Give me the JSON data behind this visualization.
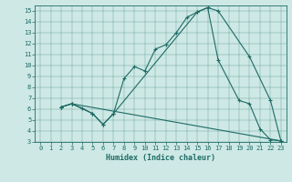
{
  "xlabel": "Humidex (Indice chaleur)",
  "xlim": [
    -0.5,
    23.5
  ],
  "ylim": [
    3,
    15.5
  ],
  "xticks": [
    0,
    1,
    2,
    3,
    4,
    5,
    6,
    7,
    8,
    9,
    10,
    11,
    12,
    13,
    14,
    15,
    16,
    17,
    18,
    19,
    20,
    21,
    22,
    23
  ],
  "yticks": [
    3,
    4,
    5,
    6,
    7,
    8,
    9,
    10,
    11,
    12,
    13,
    14,
    15
  ],
  "bg_color": "#cde8e5",
  "line_color": "#1e6b65",
  "line1_x": [
    2,
    3,
    4,
    5,
    6,
    7,
    8,
    9,
    10,
    11,
    12,
    13,
    14,
    15,
    16,
    17,
    20,
    22,
    23
  ],
  "line1_y": [
    6.2,
    6.5,
    6.1,
    5.6,
    4.6,
    5.6,
    8.8,
    9.9,
    9.5,
    11.5,
    11.9,
    13.0,
    14.4,
    14.9,
    15.3,
    15.0,
    10.8,
    6.8,
    3.1
  ],
  "line2_x": [
    2,
    3,
    5,
    6,
    7,
    15,
    16,
    17,
    19,
    20,
    21,
    22,
    23
  ],
  "line2_y": [
    6.2,
    6.5,
    5.6,
    4.6,
    5.6,
    14.9,
    15.3,
    10.5,
    6.8,
    6.5,
    4.2,
    3.2,
    3.1
  ],
  "line3_x": [
    2,
    3,
    23
  ],
  "line3_y": [
    6.2,
    6.5,
    3.1
  ]
}
